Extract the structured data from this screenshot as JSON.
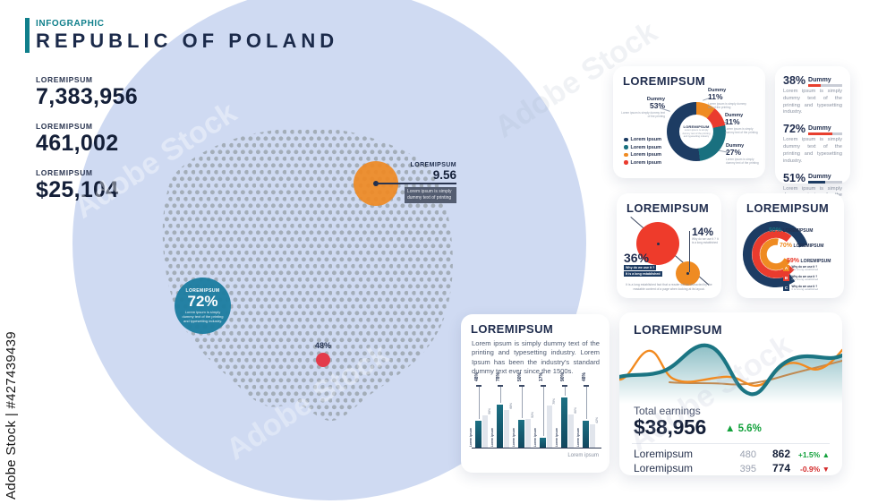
{
  "watermark": {
    "label": "Adobe Stock | #427439439",
    "repeat_label": "Adobe Stock"
  },
  "header": {
    "kicker": "INFOGRAPHIC",
    "title": "REPUBLIC OF POLAND"
  },
  "stats": [
    {
      "label": "LOREMIPSUM",
      "value": "7,383,956"
    },
    {
      "label": "LOREMIPSUM",
      "value": "461,002"
    },
    {
      "label": "LOREMIPSUM",
      "value": "$25,104"
    }
  ],
  "map": {
    "orange_marker": {
      "label": "LOREMIPSUM",
      "value": "9.56",
      "note": "Lorem ipsum is simply dummy text of printing"
    },
    "teal_marker": {
      "label": "LOREMIPSUM",
      "value": "72%",
      "note": "Lorem ipsum is simply dummy text of the printing and typesetting industry."
    },
    "red_marker": {
      "value": "48%"
    }
  },
  "cards": {
    "donut": {
      "title": "LOREMIPSUM",
      "center": {
        "label": "LOREMIPSUM",
        "note": "Lorem ipsum is simply dummy text of the printing and typesetting industry"
      },
      "labels": [
        {
          "name": "Dummy",
          "value": "53%",
          "note": "Lorem ipsum is simply dummy text of the printing"
        },
        {
          "name": "Dummy",
          "value": "11%",
          "note": "Lorem ipsum is simply dummy text of the printing"
        },
        {
          "name": "Dummy",
          "value": "11%",
          "note": "Lorem ipsum is simply dummy text of the printing"
        },
        {
          "name": "Dummy",
          "value": "27%",
          "note": "Lorem ipsum is simply dummy text of the printing"
        }
      ],
      "legend": [
        {
          "label": "Lorem ipsum",
          "color": "#1d3c63"
        },
        {
          "label": "Lorem ipsum",
          "color": "#19707f"
        },
        {
          "label": "Lorem ipsum",
          "color": "#ef8b22"
        },
        {
          "label": "Lorem ipsum",
          "color": "#ea3b2e"
        }
      ]
    },
    "progress": {
      "items": [
        {
          "value": "38%",
          "name": "Dummy",
          "note": "Lorem ipsum is simply dummy text of the printing and typesetting industry."
        },
        {
          "value": "72%",
          "name": "Dummy",
          "note": "Lorem ipsum is simply dummy text of the printing and typesetting industry."
        },
        {
          "value": "51%",
          "name": "Dummy",
          "note": "Lorem ipsum is simply dummy text of the printing and typesetting industry."
        }
      ]
    },
    "scatter": {
      "title": "LOREMIPSUM",
      "point_small": {
        "value": "14%",
        "note": "Why do we use it ? It is a long established"
      },
      "point_large": {
        "value": "36%",
        "chip1": "Why do we use it ?",
        "chip2": "It is a long established"
      },
      "footnote": "It is a long established fact that a reader will be distracted by the readable content of a page when looking at its layout."
    },
    "rings": {
      "title": "LOREMIPSUM",
      "labels": [
        {
          "value": "50%",
          "label": "LOREMIPSUM"
        },
        {
          "value": "70%",
          "label": "LOREMIPSUM"
        },
        {
          "value": "59%",
          "label": "LOREMIPSUM"
        }
      ],
      "legend": [
        {
          "key": "A",
          "line1": "Why do we use it ?",
          "line2": "It is a long established"
        },
        {
          "key": "B",
          "line1": "Why do we use it ?",
          "line2": "It is a long established"
        },
        {
          "key": "C",
          "line1": "Why do we use it ?",
          "line2": "It is a long established"
        }
      ]
    },
    "bars": {
      "title": "LOREMIPSUM",
      "paragraph": "Lorem ipsum is simply dummy text of the printing and typesetting industry. Lorem Ipsum has been the industry's standard dummy text ever since the 1500s.",
      "axis_label": "Lorem ipsum"
    },
    "earnings": {
      "title": "LOREMIPSUM",
      "total_label": "Total earnings",
      "total_value": "$38,956",
      "total_arrow": "▲",
      "total_change": "5.6%",
      "rows": [
        {
          "label": "Loremipsum",
          "prev": "480",
          "current": "862",
          "change": "+1.5%",
          "arrow": "▲",
          "direction": "up"
        },
        {
          "label": "Loremipsum",
          "prev": "395",
          "current": "774",
          "change": "-0.9%",
          "arrow": "▼",
          "direction": "down"
        }
      ]
    }
  },
  "colors": {
    "accent_teal": "#0f7f8b",
    "navy": "#1d3c63",
    "teal": "#19707f",
    "orange": "#ef8b22",
    "red": "#ea3b2e",
    "light_blue": "#cfdaf2",
    "map_dots": "#a3adb8",
    "green_positive": "#12a13b",
    "red_negative": "#d42b2b"
  },
  "chart_data": [
    {
      "id": "donut",
      "type": "pie",
      "title": "LOREMIPSUM",
      "labels": [
        "Dummy",
        "Dummy",
        "Dummy",
        "Dummy"
      ],
      "values": [
        53,
        11,
        11,
        27
      ],
      "colors": [
        "#1d3c63",
        "#ef8b22",
        "#ea3b2e",
        "#19707f"
      ],
      "legend_position": "bottom-left",
      "note": "donut with center label; slice callouts show Dummy percentages"
    },
    {
      "id": "progress",
      "type": "bar",
      "subtype": "horizontal-progress",
      "labels": [
        "Dummy",
        "Dummy",
        "Dummy"
      ],
      "values": [
        38,
        72,
        51
      ],
      "colors": [
        "#e8402f",
        "#e8402f",
        "#1d3c63"
      ],
      "xlim": [
        0,
        100
      ]
    },
    {
      "id": "bubbles",
      "type": "scatter",
      "points": [
        {
          "label": "36%",
          "value": 36,
          "color": "#ee3b2b",
          "size": "large"
        },
        {
          "label": "14%",
          "value": 14,
          "color": "#ef8b22",
          "size": "small"
        }
      ],
      "trendline": "descending-diagonal"
    },
    {
      "id": "rings",
      "type": "pie",
      "subtype": "radial-rings",
      "labels": [
        "LOREMIPSUM",
        "LOREMIPSUM",
        "LOREMIPSUM"
      ],
      "values": [
        50,
        70,
        59
      ],
      "ring_colors": [
        "#1d3c63",
        "#ea3b2e",
        "#ef8b22"
      ],
      "label_colors": [
        "#19707f",
        "#ef8b22",
        "#ea3b2e"
      ],
      "legend_keys": [
        "A",
        "B",
        "C"
      ]
    },
    {
      "id": "bars",
      "type": "bar",
      "title": "LOREMIPSUM",
      "categories": [
        "Lorem ipsum",
        "Lorem ipsum",
        "Lorem ipsum",
        "Lorem ipsum",
        "Lorem ipsum",
        "Lorem ipsum"
      ],
      "series": [
        {
          "name": "primary",
          "values": [
            48,
            78,
            50,
            17,
            90,
            48
          ]
        },
        {
          "name": "secondary",
          "values": [
            58,
            68,
            52,
            75,
            60,
            42
          ]
        }
      ],
      "ylim": [
        0,
        100
      ],
      "xlabel": "Lorem ipsum"
    },
    {
      "id": "earnings",
      "type": "area",
      "note": "decorative sparkline, axes unlabeled; values estimated 0-10 scale",
      "series": [
        {
          "name": "teal",
          "values": [
            4.5,
            4.8,
            5.3,
            6.5,
            8.8,
            9.2,
            7.0,
            3.8,
            1.8,
            3.0,
            5.2,
            7.0,
            7.2,
            7.6
          ]
        },
        {
          "name": "orange",
          "values": [
            3.8,
            3.9,
            7.8,
            4.5,
            3.6,
            3.8,
            4.0,
            3.9,
            5.0,
            6.2,
            4.2,
            5.0,
            6.0,
            8.2
          ]
        }
      ]
    }
  ]
}
